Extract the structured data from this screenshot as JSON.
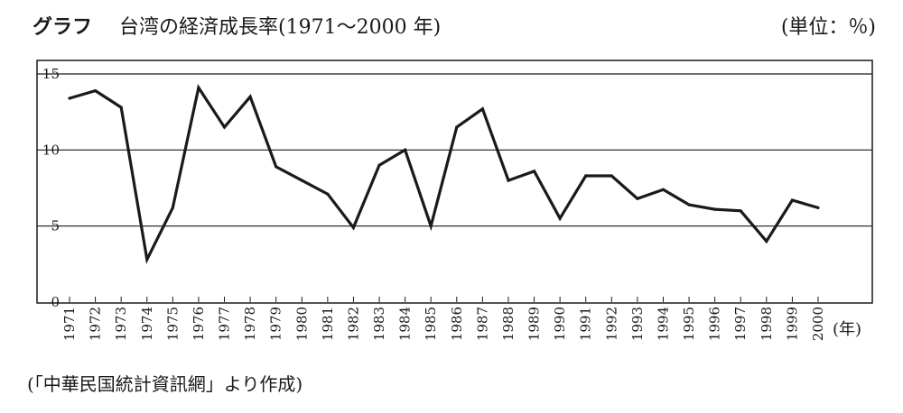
{
  "figure": {
    "label": "グラフ",
    "title": "台湾の経済成長率(1971～2000 年)",
    "unit": "(単位：％)",
    "source": "(「中華民国統計資訊網」より作成)"
  },
  "chart_data": {
    "type": "line",
    "title": "台湾の経済成長率(1971～2000 年)",
    "xlabel": "(年)",
    "ylabel": "",
    "unit": "(単位：％)",
    "ylim": [
      0,
      15
    ],
    "yticks": [
      "0",
      "5",
      "10",
      "15"
    ],
    "grid": "horizontal",
    "legend": "none",
    "x": [
      "1971",
      "1972",
      "1973",
      "1974",
      "1975",
      "1976",
      "1977",
      "1978",
      "1979",
      "1980",
      "1981",
      "1982",
      "1983",
      "1984",
      "1985",
      "1986",
      "1987",
      "1988",
      "1989",
      "1990",
      "1991",
      "1992",
      "1993",
      "1994",
      "1995",
      "1996",
      "1997",
      "1998",
      "1999",
      "2000"
    ],
    "series": [
      {
        "values": [
          13.4,
          13.9,
          12.8,
          2.8,
          6.2,
          14.1,
          11.5,
          13.5,
          8.9,
          8.0,
          7.1,
          4.9,
          9.0,
          10.0,
          5.0,
          11.5,
          12.7,
          8.0,
          8.6,
          5.5,
          8.3,
          8.3,
          6.8,
          7.4,
          6.4,
          6.1,
          6.0,
          4.0,
          6.7,
          6.2
        ]
      }
    ],
    "line_color": "#1a1a1a"
  }
}
